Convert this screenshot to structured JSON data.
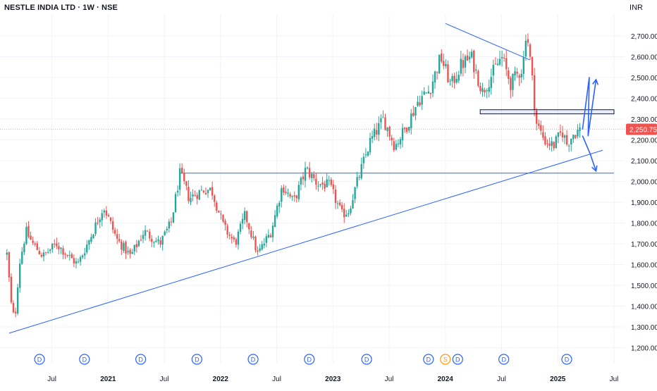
{
  "header": {
    "title": "NESTLE INDIA LTD · 1W · NSE",
    "currency": "INR"
  },
  "price_axis": {
    "ticks": [
      1200,
      1300,
      1400,
      1500,
      1600,
      1700,
      1800,
      1900,
      2000,
      2100,
      2200,
      2300,
      2400,
      2500,
      2600,
      2700
    ],
    "tick_labels": [
      "1,200.00",
      "1,300.00",
      "1,400.00",
      "1,500.00",
      "1,600.00",
      "1,700.00",
      "1,800.00",
      "1,900.00",
      "2,000.00",
      "2,100.00",
      "2,200.00",
      "2,300.00",
      "2,400.00",
      "2,500.00",
      "2,600.00",
      "2,700.00"
    ],
    "last_price": 2250.75,
    "last_price_label": "2,250.75"
  },
  "time_axis": {
    "labels": [
      {
        "text": "Jul",
        "t": 2020.5
      },
      {
        "text": "2021",
        "t": 2021.0
      },
      {
        "text": "Jul",
        "t": 2021.5
      },
      {
        "text": "2022",
        "t": 2022.0
      },
      {
        "text": "Jul",
        "t": 2022.5
      },
      {
        "text": "2023",
        "t": 2023.0
      },
      {
        "text": "Jul",
        "t": 2023.5
      },
      {
        "text": "2024",
        "t": 2024.0
      },
      {
        "text": "Jul",
        "t": 2024.5
      },
      {
        "text": "2025",
        "t": 2025.0
      },
      {
        "text": "Jul",
        "t": 2025.5
      }
    ]
  },
  "event_markers": [
    {
      "label": "D",
      "t": 2020.39
    },
    {
      "label": "D",
      "t": 2020.79
    },
    {
      "label": "D",
      "t": 2021.29
    },
    {
      "label": "D",
      "t": 2021.79
    },
    {
      "label": "D",
      "t": 2022.29
    },
    {
      "label": "D",
      "t": 2022.79
    },
    {
      "label": "D",
      "t": 2023.3
    },
    {
      "label": "D",
      "t": 2023.85
    },
    {
      "label": "S",
      "t": 2024.0
    },
    {
      "label": "D",
      "t": 2024.11
    },
    {
      "label": "D",
      "t": 2024.52
    },
    {
      "label": "D",
      "t": 2025.08
    }
  ],
  "colors": {
    "up": "#26a69a",
    "down": "#ef5350",
    "drawing": "#2962ff",
    "grid": "#f0f3fa",
    "axis_text": "#131722",
    "price_label_bg": "#ef5350",
    "split_marker": "#ff9800"
  },
  "chart_data": {
    "type": "candlestick",
    "symbol": "NESTLE INDIA LTD",
    "interval": "1W",
    "exchange": "NSE",
    "x_range": [
      2020.1,
      2025.6
    ],
    "y_range": [
      1180,
      2790
    ],
    "grid": true,
    "ohlc_anchors": [
      {
        "t": 2020.1,
        "c": 1650
      },
      {
        "t": 2020.14,
        "c": 1400
      },
      {
        "t": 2020.17,
        "c": 1330
      },
      {
        "t": 2020.21,
        "c": 1600
      },
      {
        "t": 2020.27,
        "c": 1760
      },
      {
        "t": 2020.33,
        "c": 1700
      },
      {
        "t": 2020.42,
        "c": 1640
      },
      {
        "t": 2020.54,
        "c": 1700
      },
      {
        "t": 2020.65,
        "c": 1640
      },
      {
        "t": 2020.73,
        "c": 1600
      },
      {
        "t": 2020.85,
        "c": 1740
      },
      {
        "t": 2020.96,
        "c": 1880
      },
      {
        "t": 2021.08,
        "c": 1720
      },
      {
        "t": 2021.2,
        "c": 1640
      },
      {
        "t": 2021.32,
        "c": 1760
      },
      {
        "t": 2021.46,
        "c": 1700
      },
      {
        "t": 2021.56,
        "c": 1800
      },
      {
        "t": 2021.64,
        "c": 2040
      },
      {
        "t": 2021.72,
        "c": 1920
      },
      {
        "t": 2021.85,
        "c": 1960
      },
      {
        "t": 2021.92,
        "c": 1960
      },
      {
        "t": 2022.03,
        "c": 1780
      },
      {
        "t": 2022.13,
        "c": 1700
      },
      {
        "t": 2022.22,
        "c": 1840
      },
      {
        "t": 2022.33,
        "c": 1650
      },
      {
        "t": 2022.45,
        "c": 1760
      },
      {
        "t": 2022.55,
        "c": 1980
      },
      {
        "t": 2022.65,
        "c": 1900
      },
      {
        "t": 2022.76,
        "c": 2060
      },
      {
        "t": 2022.86,
        "c": 1990
      },
      {
        "t": 2022.97,
        "c": 1980
      },
      {
        "t": 2023.08,
        "c": 1840
      },
      {
        "t": 2023.14,
        "c": 1860
      },
      {
        "t": 2023.24,
        "c": 2040
      },
      {
        "t": 2023.33,
        "c": 2190
      },
      {
        "t": 2023.45,
        "c": 2300
      },
      {
        "t": 2023.55,
        "c": 2170
      },
      {
        "t": 2023.65,
        "c": 2260
      },
      {
        "t": 2023.76,
        "c": 2390
      },
      {
        "t": 2023.86,
        "c": 2440
      },
      {
        "t": 2023.96,
        "c": 2600
      },
      {
        "t": 2024.05,
        "c": 2460
      },
      {
        "t": 2024.14,
        "c": 2560
      },
      {
        "t": 2024.23,
        "c": 2600
      },
      {
        "t": 2024.33,
        "c": 2430
      },
      {
        "t": 2024.4,
        "c": 2500
      },
      {
        "t": 2024.5,
        "c": 2600
      },
      {
        "t": 2024.58,
        "c": 2470
      },
      {
        "t": 2024.69,
        "c": 2550
      },
      {
        "t": 2024.72,
        "c": 2740
      },
      {
        "t": 2024.76,
        "c": 2560
      },
      {
        "t": 2024.81,
        "c": 2280
      },
      {
        "t": 2024.88,
        "c": 2200
      },
      {
        "t": 2024.96,
        "c": 2170
      },
      {
        "t": 2025.04,
        "c": 2240
      },
      {
        "t": 2025.08,
        "c": 2180
      },
      {
        "t": 2025.14,
        "c": 2230
      },
      {
        "t": 2025.2,
        "c": 2250.75
      }
    ],
    "drawings": {
      "long_trendline": {
        "from": {
          "t": 2020.12,
          "price": 1270
        },
        "to": {
          "t": 2025.4,
          "price": 2150
        }
      },
      "horizontal_support": {
        "price": 2040,
        "from_t": 2021.63,
        "to_t": 2025.5
      },
      "upper_trendline": {
        "from": {
          "t": 2024.0,
          "price": 2760
        },
        "to": {
          "t": 2024.75,
          "price": 2585
        }
      },
      "resistance_zone": {
        "price_low": 2325,
        "price_high": 2345,
        "from_t": 2024.31,
        "to_t": 2025.5
      },
      "bullish_projection": [
        {
          "t": 2025.22,
          "price": 2250
        },
        {
          "t": 2025.28,
          "price": 2500
        },
        {
          "t": 2025.27,
          "price": 2220
        },
        {
          "t": 2025.34,
          "price": 2490
        }
      ],
      "bearish_projection": [
        {
          "t": 2025.22,
          "price": 2220
        },
        {
          "t": 2025.29,
          "price": 2130
        },
        {
          "t": 2025.34,
          "price": 2050
        }
      ]
    }
  }
}
